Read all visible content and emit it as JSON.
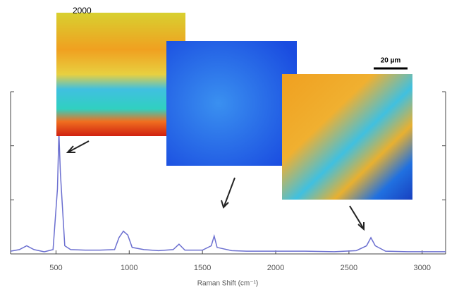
{
  "chart_data": {
    "type": "line",
    "x_label": "Raman Shift (cm⁻¹)",
    "annotations": [
      "2000",
      "20 µm"
    ],
    "x": [
      190,
      250,
      300,
      350,
      420,
      480,
      510,
      520,
      530,
      560,
      600,
      700,
      800,
      900,
      930,
      960,
      990,
      1020,
      1100,
      1200,
      1300,
      1340,
      1380,
      1500,
      1560,
      1580,
      1600,
      1700,
      1800,
      2000,
      2200,
      2400,
      2550,
      2620,
      2650,
      2680,
      2750,
      2900,
      3100,
      3160
    ],
    "series": [
      {
        "color": "#6b6fd0",
        "values": [
          0.05,
          0.08,
          0.15,
          0.08,
          0.04,
          0.08,
          1.2,
          2.25,
          1.5,
          0.15,
          0.08,
          0.07,
          0.07,
          0.08,
          0.3,
          0.42,
          0.35,
          0.12,
          0.08,
          0.06,
          0.08,
          0.18,
          0.07,
          0.07,
          0.15,
          0.33,
          0.12,
          0.06,
          0.05,
          0.05,
          0.05,
          0.04,
          0.06,
          0.15,
          0.3,
          0.15,
          0.05,
          0.04,
          0.04,
          0.04
        ]
      }
    ],
    "xlim": [
      190,
      3160
    ],
    "xticks": [
      500,
      1000,
      1500,
      2000,
      2500,
      3000
    ],
    "ylim": [
      0,
      3
    ],
    "yticks": [
      0,
      1,
      2,
      3
    ]
  }
}
